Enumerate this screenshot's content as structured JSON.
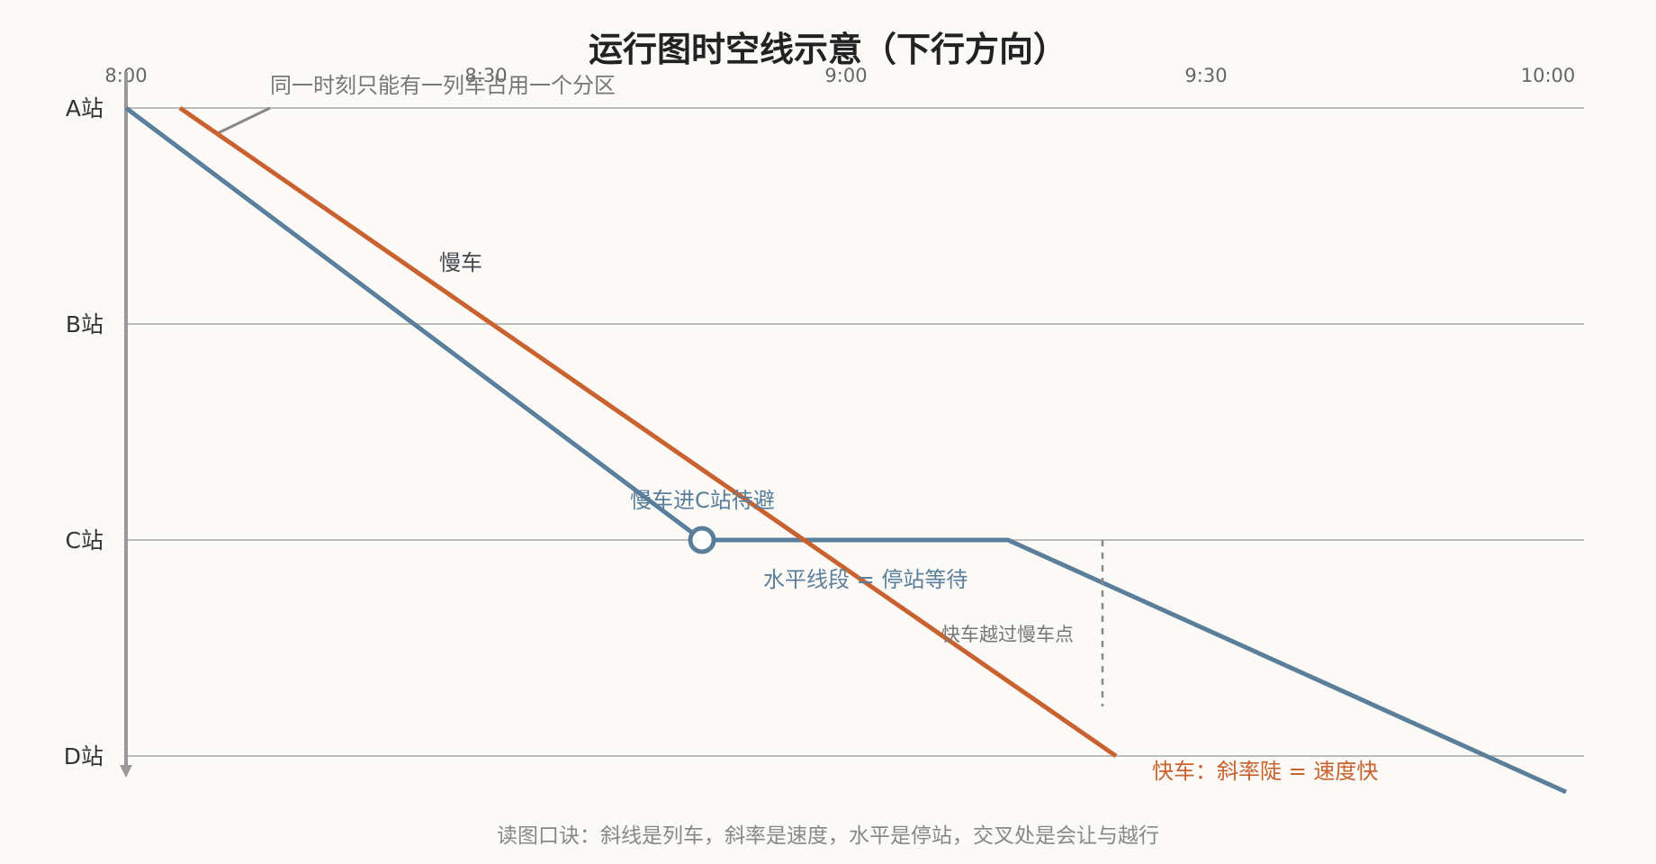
{
  "title": "运行图时空线示意（下行方向）",
  "time_labels": [
    "8:00",
    "8:30",
    "9:00",
    "9:30",
    "10:00"
  ],
  "stations": [
    "A站",
    "B站",
    "C站",
    "D站"
  ],
  "annotations": {
    "occupy": "同一时刻只能有一列车占用一个分区",
    "slow_train": "慢车",
    "wait_in": "慢车进C站待避",
    "horizontal": "水平线段 = 停站等待",
    "overtake": "快车越过慢车点",
    "fast_train": "快车：斜率陡 = 速度快"
  },
  "footer": "读图口诀：斜线是列车，斜率是速度，水平是停站，交叉处是会让与越行",
  "colors": {
    "slow_train": "#5b7f9a",
    "fast_train": "#c9622e",
    "grid": "#bbbbbb",
    "axis": "#999999"
  }
}
